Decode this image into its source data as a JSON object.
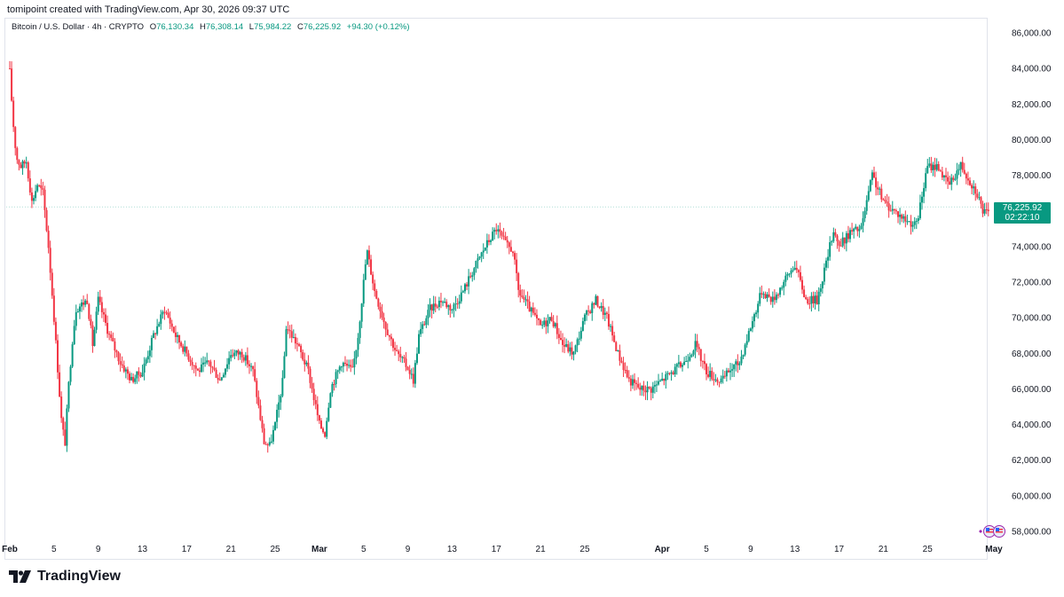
{
  "header": {
    "created_line": "tomipoint created with TradingView.com, Apr 30, 2026 09:37 UTC"
  },
  "legend": {
    "symbol": "Bitcoin / U.S. Dollar · 4h · CRYPTO",
    "o_label": "O",
    "o_value": "76,130.34",
    "h_label": "H",
    "h_value": "76,308.14",
    "l_label": "L",
    "l_value": "75,984.22",
    "c_label": "C",
    "c_value": "76,225.92",
    "change": "+94.30 (+0.12%)"
  },
  "price_tag": {
    "price": "76,225.92",
    "countdown": "02:22:10"
  },
  "brand": {
    "name": "TradingView"
  },
  "colors": {
    "up": "#089981",
    "down": "#f23645",
    "text": "#131722",
    "gridline": "#e0e3eb"
  },
  "chart_data": {
    "type": "candlestick",
    "ylim": [
      57500,
      86800
    ],
    "y_ticks": [
      "86,000.00",
      "84,000.00",
      "82,000.00",
      "80,000.00",
      "78,000.00",
      "74,000.00",
      "72,000.00",
      "70,000.00",
      "68,000.00",
      "66,000.00",
      "64,000.00",
      "62,000.00",
      "60,000.00",
      "58,000.00"
    ],
    "y_tick_values": [
      86000,
      84000,
      82000,
      80000,
      78000,
      74000,
      72000,
      70000,
      68000,
      66000,
      64000,
      62000,
      60000,
      58000
    ],
    "x_ticks": [
      {
        "label": "Feb",
        "day": 0,
        "month": true
      },
      {
        "label": "5",
        "day": 4
      },
      {
        "label": "9",
        "day": 8
      },
      {
        "label": "13",
        "day": 12
      },
      {
        "label": "17",
        "day": 16
      },
      {
        "label": "21",
        "day": 20
      },
      {
        "label": "25",
        "day": 24
      },
      {
        "label": "Mar",
        "day": 28,
        "month": true
      },
      {
        "label": "5",
        "day": 32
      },
      {
        "label": "9",
        "day": 36
      },
      {
        "label": "13",
        "day": 40
      },
      {
        "label": "17",
        "day": 44
      },
      {
        "label": "21",
        "day": 48
      },
      {
        "label": "25",
        "day": 52
      },
      {
        "label": "Apr",
        "day": 59,
        "month": true
      },
      {
        "label": "5",
        "day": 63
      },
      {
        "label": "9",
        "day": 67
      },
      {
        "label": "13",
        "day": 71
      },
      {
        "label": "17",
        "day": 75
      },
      {
        "label": "21",
        "day": 79
      },
      {
        "label": "25",
        "day": 83
      },
      {
        "label": "May",
        "day": 89,
        "month": true
      }
    ],
    "x_range_days": [
      0,
      89
    ],
    "candles_per_day": 6,
    "path_days": [
      0,
      0.3,
      0.6,
      1,
      1.5,
      2,
      2.5,
      3,
      3.5,
      4,
      4.7,
      5,
      5.3,
      5.7,
      6,
      7,
      7.5,
      8,
      8.5,
      9,
      10,
      11,
      12,
      13,
      14,
      15,
      16,
      17,
      18,
      19,
      20,
      21,
      22,
      23,
      23.5,
      24,
      24.7,
      25,
      26,
      27,
      28,
      28.5,
      29,
      30,
      31,
      31.5,
      32,
      32.3,
      33,
      34,
      35,
      36,
      36.5,
      37,
      38,
      39,
      40,
      41,
      42,
      43,
      44,
      44.5,
      45,
      45.5,
      46,
      47,
      48,
      49,
      50,
      51,
      52,
      53,
      54,
      55,
      56,
      57,
      58,
      59,
      60,
      61,
      62,
      63,
      64,
      64.5,
      65,
      66,
      67,
      68,
      69,
      70,
      71,
      72,
      73,
      74,
      74.5,
      75,
      76,
      77,
      78,
      79,
      80,
      81,
      82,
      83,
      84,
      84.5,
      85,
      86,
      87,
      87.5,
      88,
      88.5
    ],
    "path_values": [
      83800,
      81000,
      79000,
      78500,
      78800,
      76500,
      77500,
      77000,
      74000,
      70000,
      64000,
      63000,
      66000,
      69000,
      70500,
      71000,
      68500,
      71000,
      70000,
      69000,
      67500,
      66500,
      67000,
      69000,
      70500,
      69000,
      68000,
      67000,
      67500,
      66500,
      68000,
      68000,
      67000,
      63000,
      62800,
      64000,
      66500,
      69500,
      68500,
      67000,
      64000,
      63500,
      66000,
      67500,
      67000,
      69000,
      72000,
      73800,
      71500,
      69500,
      68000,
      67200,
      66500,
      69000,
      70500,
      71000,
      70500,
      71500,
      72800,
      74000,
      75000,
      74500,
      74000,
      73800,
      71500,
      70500,
      69500,
      70000,
      68500,
      68000,
      70000,
      71000,
      70000,
      68000,
      66500,
      66000,
      66000,
      66500,
      67000,
      67500,
      68500,
      67000,
      66500,
      66500,
      67000,
      67500,
      69500,
      71500,
      71000,
      72000,
      73000,
      71000,
      71000,
      73500,
      75000,
      74000,
      74800,
      75000,
      78000,
      76500,
      76000,
      75500,
      75200,
      78500,
      78500,
      77800,
      77500,
      78600,
      77500,
      77000,
      76000,
      75800,
      76200
    ]
  }
}
